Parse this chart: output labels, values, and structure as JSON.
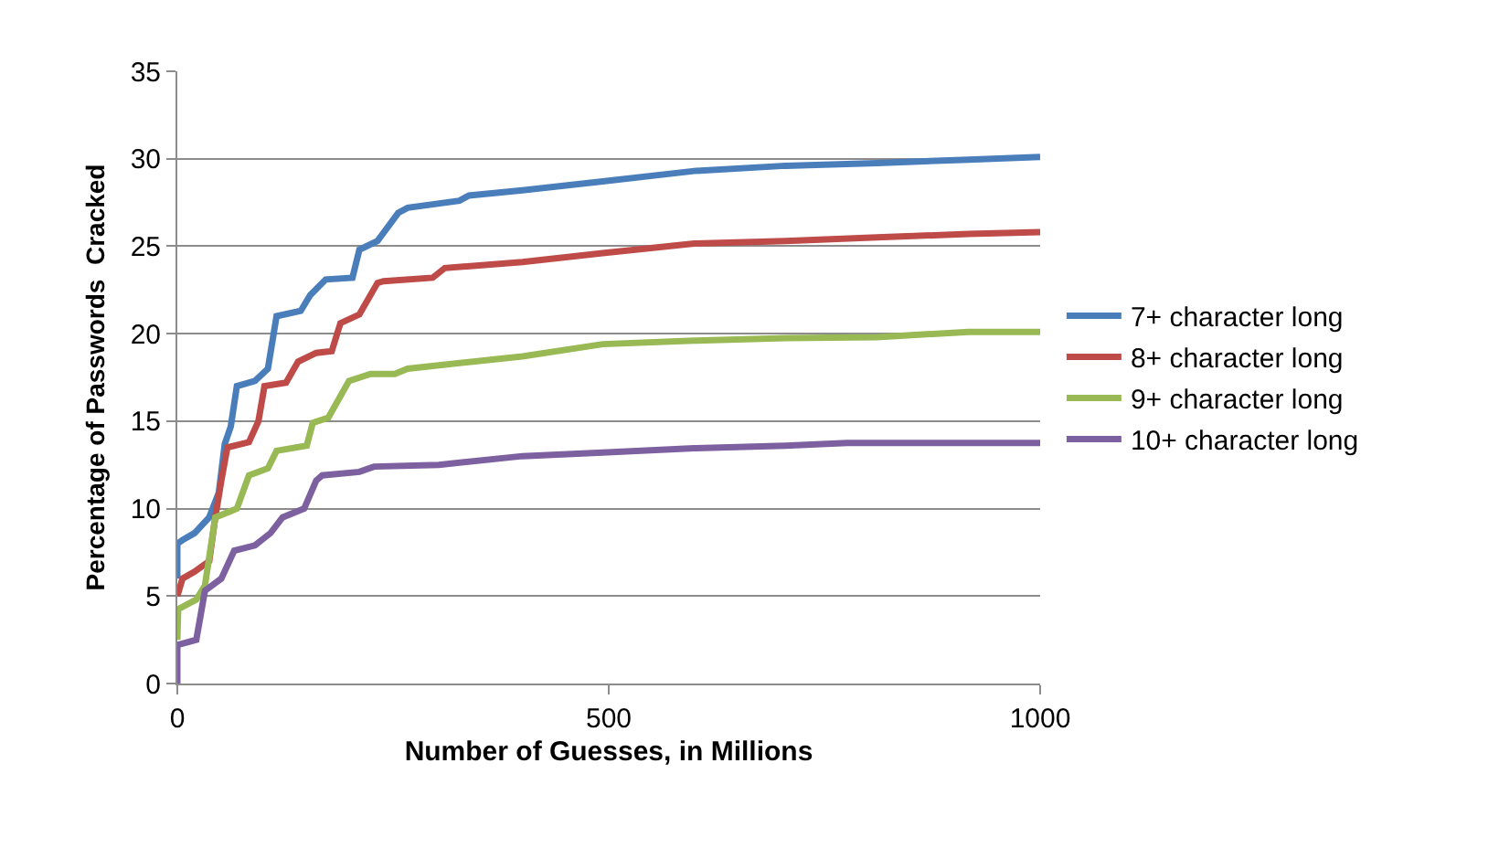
{
  "chart_data": {
    "type": "line",
    "xlabel": "Number of Guesses, in Millions",
    "ylabel": "Percentage of Passwords  Cracked",
    "xlim": [
      0,
      1000
    ],
    "xticks": [
      0,
      500,
      1000
    ],
    "ylim": [
      0,
      35
    ],
    "yticks": [
      0,
      5,
      10,
      15,
      20,
      25,
      30,
      35
    ],
    "grid": "y",
    "legend": "right",
    "marker": "none",
    "line_style": "solid",
    "series": [
      {
        "name": "7+ character long",
        "color": "#4a7ebb",
        "x": [
          0,
          0,
          6,
          20,
          37,
          48,
          55,
          62,
          69,
          90,
          105,
          115,
          143,
          154,
          172,
          203,
          211,
          232,
          256,
          267,
          327,
          338,
          400,
          493,
          599,
          705,
          811,
          917,
          1000
        ],
        "values": [
          6.0,
          8.0,
          8.2,
          8.6,
          9.5,
          10.9,
          13.7,
          14.7,
          17.0,
          17.3,
          18.0,
          21.0,
          21.3,
          22.2,
          23.1,
          23.2,
          24.8,
          25.3,
          26.9,
          27.2,
          27.6,
          27.9,
          28.2,
          28.7,
          29.3,
          29.6,
          29.75,
          29.95,
          30.1
        ]
      },
      {
        "name": "8+ character long",
        "color": "#be4b48",
        "x": [
          0,
          6,
          20,
          37,
          44,
          51,
          58,
          83,
          94,
          101,
          126,
          140,
          161,
          179,
          189,
          211,
          232,
          239,
          296,
          310,
          400,
          493,
          599,
          705,
          811,
          917,
          1000
        ],
        "values": [
          5.0,
          6.0,
          6.4,
          7.0,
          9.5,
          11.6,
          13.5,
          13.8,
          15.0,
          17.0,
          17.2,
          18.4,
          18.9,
          19.0,
          20.6,
          21.1,
          22.9,
          23.0,
          23.2,
          23.75,
          24.1,
          24.6,
          25.15,
          25.3,
          25.5,
          25.7,
          25.8
        ]
      },
      {
        "name": "9+ character long",
        "color": "#98b954",
        "x": [
          0,
          1,
          22,
          32,
          44,
          69,
          83,
          105,
          115,
          150,
          157,
          175,
          199,
          224,
          252,
          267,
          400,
          493,
          599,
          705,
          811,
          917,
          1000
        ],
        "values": [
          2.5,
          4.25,
          4.8,
          5.6,
          9.5,
          10.0,
          11.9,
          12.3,
          13.3,
          13.6,
          14.9,
          15.2,
          17.3,
          17.7,
          17.7,
          18.0,
          18.7,
          19.4,
          19.6,
          19.75,
          19.8,
          20.1,
          20.1
        ]
      },
      {
        "name": "10+ character long",
        "color": "#7d60a0",
        "x": [
          0,
          0,
          22,
          32,
          51,
          66,
          90,
          108,
          122,
          147,
          161,
          168,
          211,
          228,
          303,
          400,
          493,
          599,
          705,
          776,
          1000
        ],
        "values": [
          0.0,
          2.2,
          2.5,
          5.3,
          6.0,
          7.6,
          7.9,
          8.6,
          9.5,
          10.0,
          11.6,
          11.9,
          12.1,
          12.4,
          12.5,
          13.0,
          13.2,
          13.45,
          13.6,
          13.75,
          13.75
        ]
      }
    ]
  }
}
